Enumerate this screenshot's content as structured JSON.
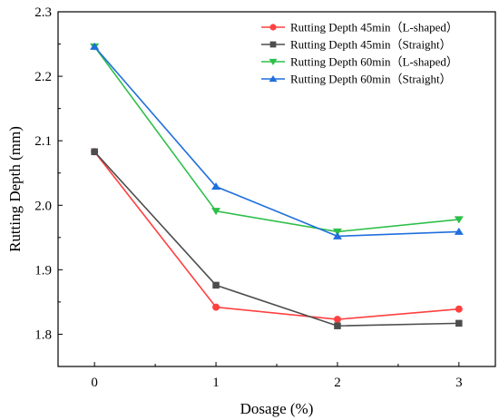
{
  "chart_data": {
    "type": "line",
    "title": "",
    "xlabel": "Dosage (%)",
    "ylabel": "Rutting Depth (mm)",
    "x": [
      0,
      1,
      2,
      3
    ],
    "xlim": [
      -0.3,
      3.3
    ],
    "ylim": [
      1.75,
      2.3
    ],
    "xticks": [
      "0",
      "1",
      "2",
      "3"
    ],
    "yticks": [
      "1.8",
      "1.9",
      "2.0",
      "2.1",
      "2.2",
      "2.3"
    ],
    "grid": false,
    "legend_position": "top-right",
    "series": [
      {
        "name": "Rutting Depth 45min（L-shaped）",
        "color": "#ff4040",
        "marker": "circle",
        "values": [
          2.083,
          1.842,
          1.823,
          1.839
        ]
      },
      {
        "name": "Rutting Depth 45min（Straight）",
        "color": "#4d4d4d",
        "marker": "square",
        "values": [
          2.083,
          1.876,
          1.813,
          1.817
        ]
      },
      {
        "name": "Rutting Depth 60min（L-shaped）",
        "color": "#2ebf4a",
        "marker": "triangle-down",
        "values": [
          2.246,
          1.991,
          1.959,
          1.978
        ]
      },
      {
        "name": "Rutting Depth 60min（Straight）",
        "color": "#1f6fdd",
        "marker": "triangle-up",
        "values": [
          2.246,
          2.029,
          1.952,
          1.959
        ]
      }
    ]
  }
}
